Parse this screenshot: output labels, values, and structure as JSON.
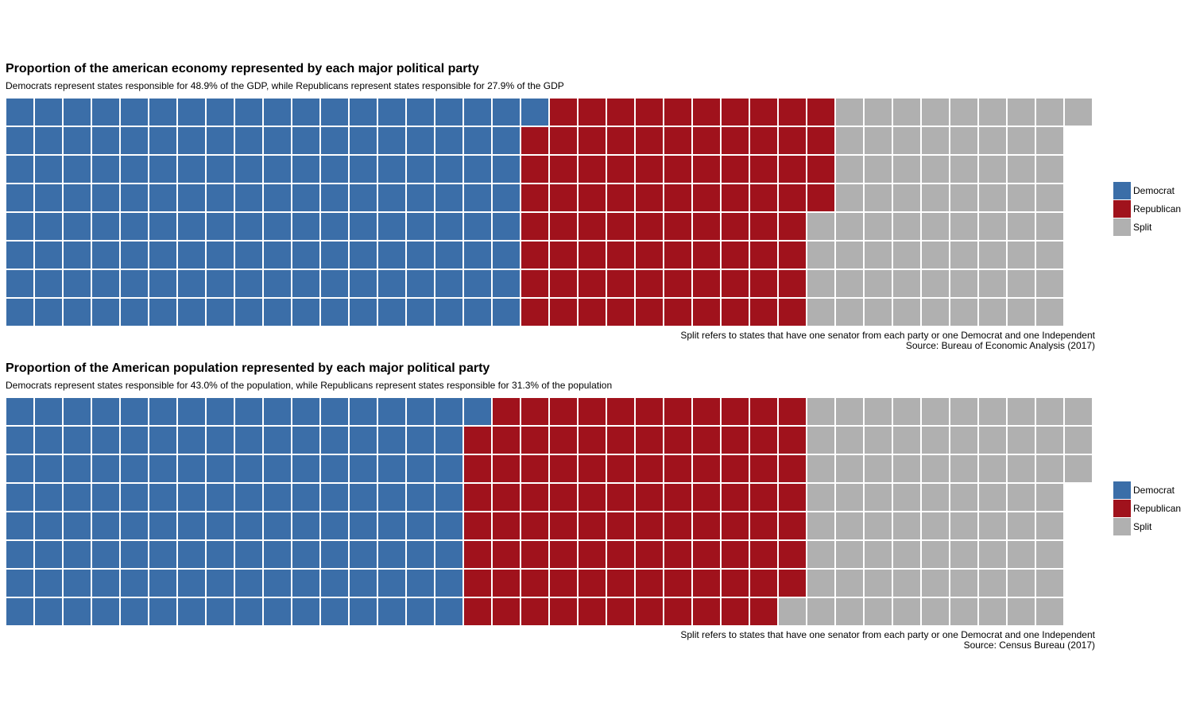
{
  "colors": {
    "democrat": "#3b6ea8",
    "republican": "#a0121c",
    "split": "#b0b0b0",
    "grid_line": "#ffffff"
  },
  "legend": {
    "democrat": "Democrat",
    "republican": "Republican",
    "split": "Split"
  },
  "chart_data": [
    {
      "type": "waffle",
      "title": "Proportion of the american economy represented by each major political party",
      "subtitle": "Democrats represent states responsible for 48.9% of the GDP, while Republicans represent states responsible for 27.9% of the GDP",
      "caption_line1": "Split refers to states that have one senator from each party or one Democrat and one Independent",
      "caption_line2": "Source: Bureau of Economic Analysis (2017)",
      "rows": 8,
      "categories": [
        "Democrat",
        "Republican",
        "Split"
      ],
      "values": [
        145,
        83,
        69
      ]
    },
    {
      "type": "waffle",
      "title": "Proportion of the American population represented by each major political party",
      "subtitle": "Democrats represent states responsible for 43.0% of the population, while Republicans represent states responsible for 31.3% of the population",
      "caption_line1": "Split refers to states that have one senator from each party or one Democrat and one Independent",
      "caption_line2": "Source: Census Bureau (2017)",
      "rows": 8,
      "categories": [
        "Democrat",
        "Republican",
        "Split"
      ],
      "values": [
        129,
        94,
        76
      ]
    }
  ]
}
